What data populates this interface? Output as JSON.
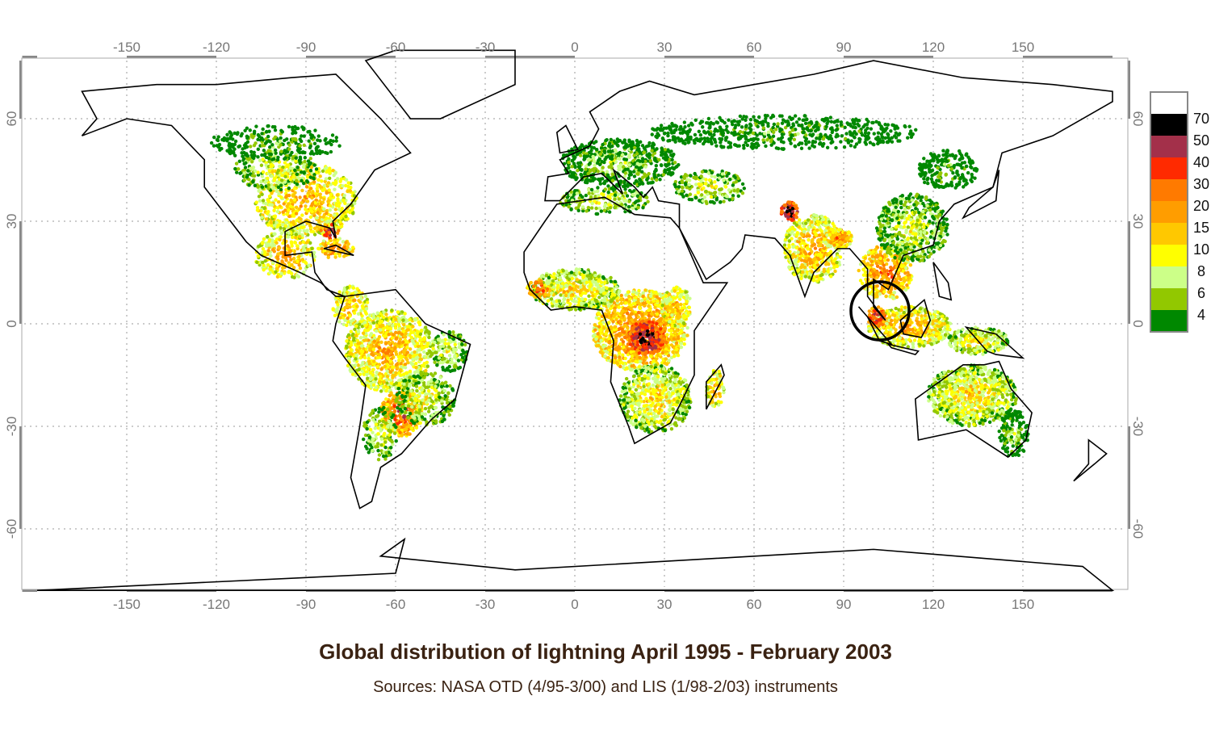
{
  "title": "Global distribution of lightning April 1995 - February 2003",
  "subtitle": "Sources: NASA OTD (4/95-3/00) and LIS (1/98-2/03) instruments",
  "axes": {
    "longitude_ticks": [
      "-150",
      "-120",
      "-90",
      "-60",
      "-30",
      "0",
      "30",
      "60",
      "90",
      "120",
      "150"
    ],
    "latitude_ticks": [
      "60",
      "30",
      "0",
      "-30",
      "-60"
    ]
  },
  "legend": {
    "labels": [
      "70",
      "50",
      "40",
      "30",
      "20",
      "15",
      "10",
      "8",
      "6",
      "4"
    ],
    "colors": [
      "#ffffff",
      "#000000",
      "#a3304a",
      "#ff2a00",
      "#ff7a00",
      "#ff9d00",
      "#ffc800",
      "#ffff00",
      "#ccff88",
      "#92c800",
      "#008800"
    ]
  },
  "annotation": {
    "marker": "black circle",
    "location": "Sumatra / Malacca Strait"
  }
}
